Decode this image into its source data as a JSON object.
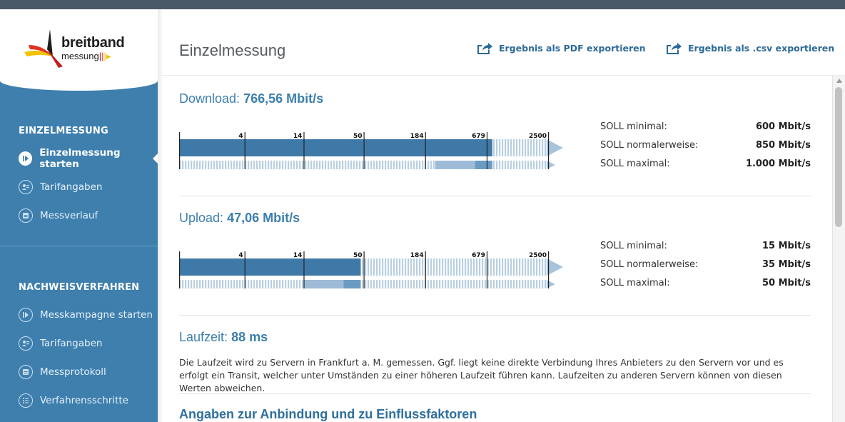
{
  "logo": {
    "word": "breitband",
    "sub": "messung"
  },
  "sidebar": {
    "section1": "EINZELMESSUNG",
    "items1": [
      {
        "label": "Einzelmessung starten",
        "icon": "play-icon"
      },
      {
        "label": "Tarifangaben",
        "icon": "contract-icon"
      },
      {
        "label": "Messverlauf",
        "icon": "calendar-icon"
      }
    ],
    "section2": "NACHWEISVERFAHREN",
    "items2": [
      {
        "label": "Messkampagne starten",
        "icon": "play-icon"
      },
      {
        "label": "Tarifangaben",
        "icon": "contract-icon"
      },
      {
        "label": "Messprotokoll",
        "icon": "calendar-icon"
      },
      {
        "label": "Verfahrensschritte",
        "icon": "list-icon"
      }
    ]
  },
  "header": {
    "title": "Einzelmessung",
    "export_pdf": "Ergebnis als PDF exportieren",
    "export_csv": "Ergebnis als .csv exportieren"
  },
  "scale_ticks": [
    "4",
    "14",
    "50",
    "184",
    "679",
    "2500"
  ],
  "download": {
    "label": "Download:",
    "value": "766,56 Mbit/s",
    "measured_mbit": 766.56,
    "soll": [
      {
        "label": "SOLL minimal:",
        "value": "600 Mbit/s"
      },
      {
        "label": "SOLL normalerweise:",
        "value": "850 Mbit/s"
      },
      {
        "label": "SOLL maximal:",
        "value": "1.000 Mbit/s"
      }
    ]
  },
  "upload": {
    "label": "Upload:",
    "value": "47,06 Mbit/s",
    "measured_mbit": 47.06,
    "soll": [
      {
        "label": "SOLL minimal:",
        "value": "15 Mbit/s"
      },
      {
        "label": "SOLL normalerweise:",
        "value": "35 Mbit/s"
      },
      {
        "label": "SOLL maximal:",
        "value": "50 Mbit/s"
      }
    ]
  },
  "latency": {
    "label": "Laufzeit:",
    "value": "88 ms",
    "text": "Die Laufzeit wird zu Servern in Frankfurt a. M. gemessen. Ggf. liegt keine direkte Verbindung Ihres Anbieters zu den Servern vor und es erfolgt ein Transit, welcher unter Umständen zu einer höheren Laufzeit führen kann. Laufzeiten zu anderen Servern können von diesen Werten abweichen."
  },
  "next_section": "Angaben zur Anbindung und zu Einflussfaktoren",
  "colors": {
    "sidebar": "#3e7fae",
    "bar": "#3f79a8",
    "accent": "#2d6a98"
  }
}
